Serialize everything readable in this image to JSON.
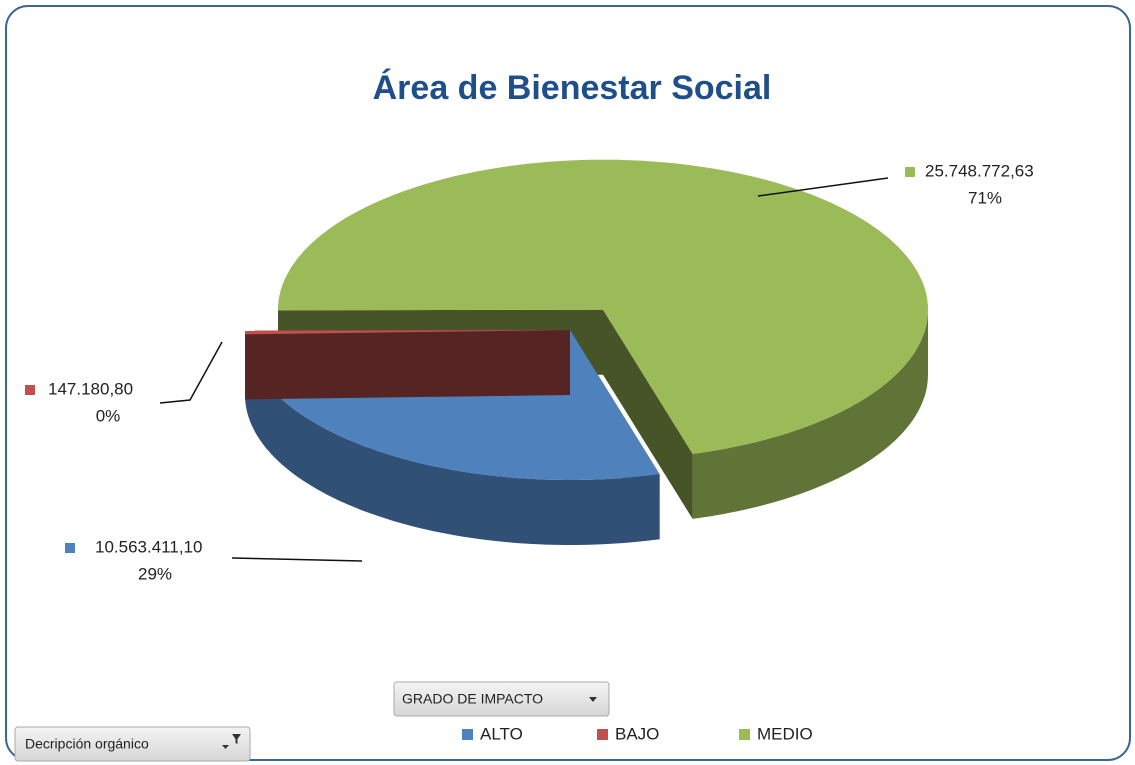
{
  "chart_data": {
    "type": "pie",
    "title": "Área de Bienestar Social",
    "categories": [
      "ALTO",
      "BAJO",
      "MEDIO"
    ],
    "values": [
      10563411.1,
      147180.8,
      25748772.63
    ],
    "value_labels": [
      "10.563.411,10",
      "147.180,80",
      "25.748.772,63"
    ],
    "percent_labels": [
      "29%",
      "0%",
      "71%"
    ],
    "colors": [
      "#4f81bd",
      "#c0504d",
      "#9bbb59"
    ],
    "exploded": [
      false,
      false,
      true
    ],
    "legend": "bottom",
    "field_buttons": {
      "legend_field": "GRADO DE IMPACTO",
      "filter_field": "Decripción orgánico"
    }
  }
}
